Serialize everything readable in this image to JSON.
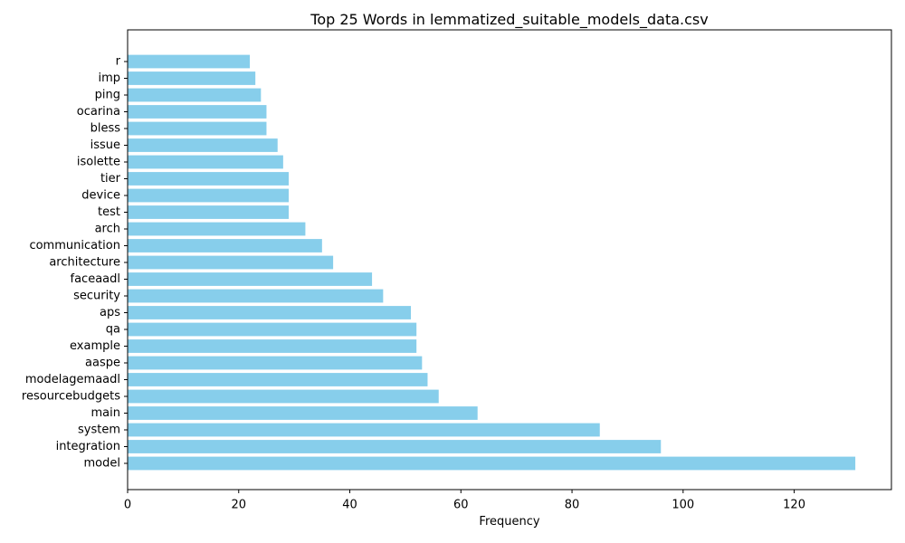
{
  "chart_data": {
    "type": "bar",
    "orientation": "horizontal",
    "title": "Top 25 Words in lemmatized_suitable_models_data.csv",
    "xlabel": "Frequency",
    "ylabel": "",
    "xlim": [
      0,
      137.5
    ],
    "x_ticks": [
      0,
      20,
      40,
      60,
      80,
      100,
      120
    ],
    "grid": false,
    "bar_color": "#87ceeb",
    "categories": [
      "model",
      "integration",
      "system",
      "main",
      "resourcebudgets",
      "modelagemaadl",
      "aaspe",
      "example",
      "qa",
      "aps",
      "security",
      "faceaadl",
      "architecture",
      "communication",
      "arch",
      "test",
      "device",
      "tier",
      "isolette",
      "issue",
      "bless",
      "ocarina",
      "ping",
      "imp",
      "r"
    ],
    "values": [
      131,
      96,
      85,
      63,
      56,
      54,
      53,
      52,
      52,
      51,
      46,
      44,
      37,
      35,
      32,
      29,
      29,
      29,
      28,
      27,
      25,
      25,
      24,
      23,
      22
    ]
  }
}
